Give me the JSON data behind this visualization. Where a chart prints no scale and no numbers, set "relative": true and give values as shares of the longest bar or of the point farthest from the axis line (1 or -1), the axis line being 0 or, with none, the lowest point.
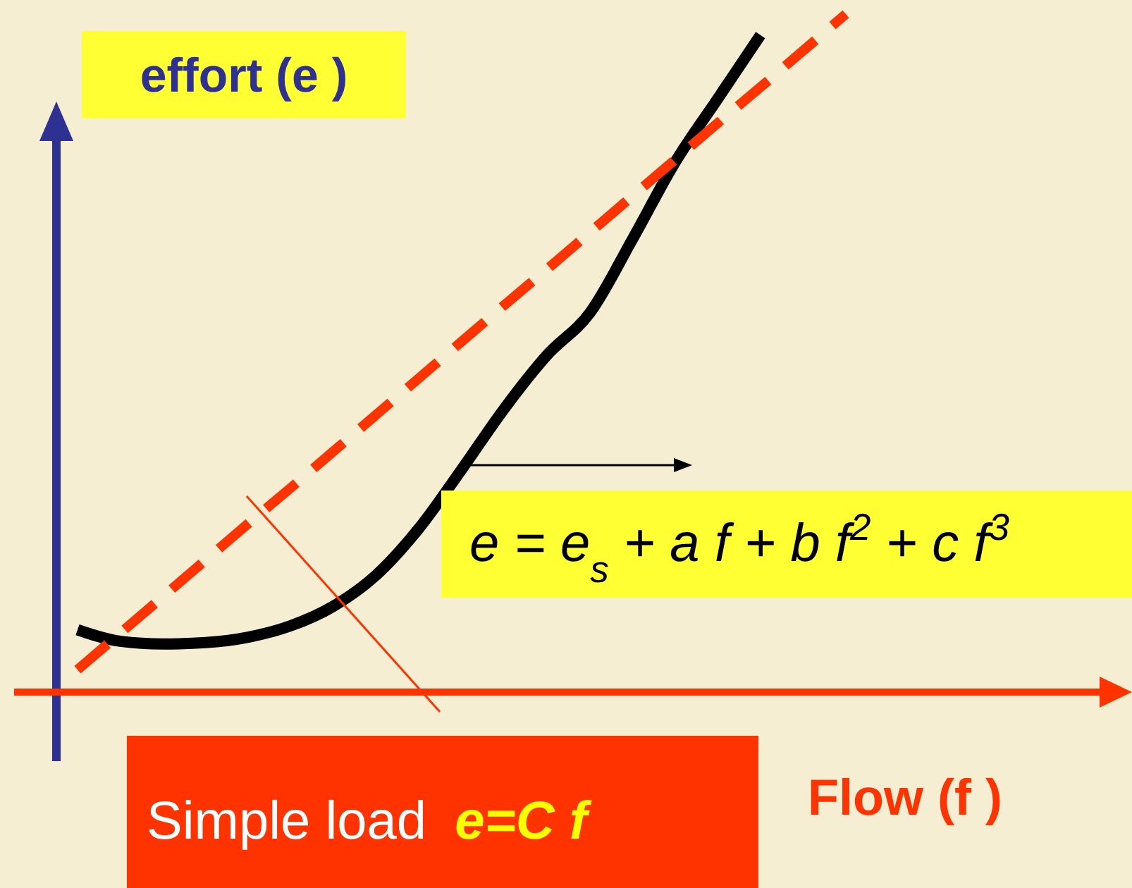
{
  "chart_data": {
    "type": "line",
    "relative": true,
    "xlabel": "Flow (f )",
    "ylabel": "effort (e )",
    "categories": [
      null,
      null,
      null,
      null,
      null,
      null,
      null,
      null,
      null,
      null,
      null,
      null,
      null,
      null,
      null,
      null,
      null,
      null,
      null
    ],
    "series": [
      {
        "color": "#000000",
        "line_style": "solid",
        "values": [
          0.09,
          0.073,
          0.069,
          0.071,
          0.079,
          0.096,
          0.125,
          0.171,
          0.24,
          0.327,
          0.417,
          0.496,
          0.558,
          0.667,
          0.781,
          0.875,
          0.969,
          null,
          null
        ]
      },
      {
        "color": "#ff3300",
        "line_style": "dashed",
        "values": [
          0.031,
          0.085,
          0.139,
          0.193,
          0.247,
          0.3,
          0.354,
          0.408,
          0.462,
          0.516,
          0.57,
          0.623,
          0.677,
          0.731,
          0.785,
          0.839,
          0.892,
          0.946,
          1
        ]
      }
    ],
    "annotations": [
      "e = e$_{s}$ + a f + b f$^{2}$ + c f$^{3}$",
      "Simple load",
      "e=C f"
    ],
    "legend": false,
    "grid": false
  }
}
